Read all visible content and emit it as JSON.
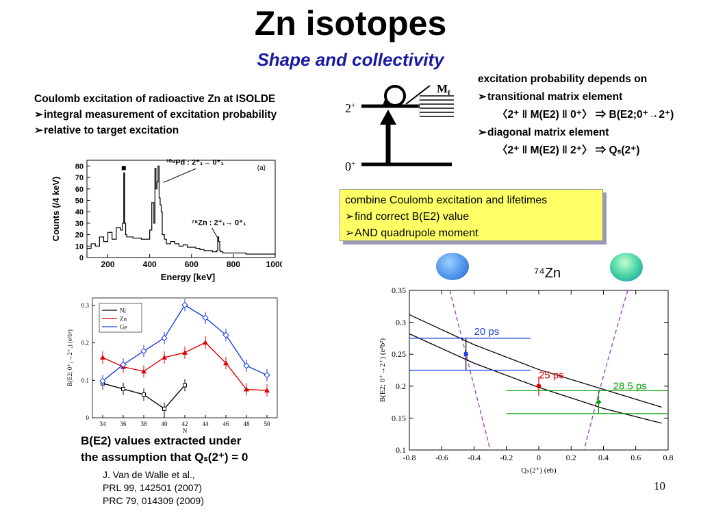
{
  "slide": {
    "title": "Zn isotopes",
    "subtitle": "Shape and collectivity",
    "page_number": "10"
  },
  "left_intro": {
    "line1": "Coulomb excitation of radioactive Zn at ISOLDE",
    "bullet1": "integral measurement of excitation probability",
    "bullet2": "relative to target excitation"
  },
  "level_scheme": {
    "upper_level": "2",
    "upper_parity": "+",
    "lower_level": "0",
    "lower_parity": "+",
    "matrix_label": "M",
    "matrix_sub": "f"
  },
  "right_info": {
    "heading": "excitation probability depends on",
    "bullet1": "transitional matrix element",
    "formula1": "〈2⁺ ‖ M(E2) ‖ 0⁺〉 ⇒ B(E2;0⁺→2⁺)",
    "bullet2": "diagonal matrix element",
    "formula2": "〈2⁺ ‖ M(E2) ‖ 2⁺〉 ⇒ Qₛ(2⁺)"
  },
  "combine_box": {
    "line1": "combine Coulomb excitation and lifetimes",
    "bullet1": "find correct B(E2) value",
    "bullet2": "AND quadrupole moment"
  },
  "bottom_note": {
    "line1": "B(E2) values extracted under",
    "line2": "the assumption that Qₛ(2⁺) = 0"
  },
  "references": {
    "line1": "J. Van de Walle et al.,",
    "line2": "PRL 99, 142501 (2007)",
    "line3": "PRC 79, 014309 (2009)"
  },
  "nucleus_label": "⁷⁴Zn",
  "colors": {
    "subtitle": "#1a1aa0",
    "box_fill": "#ffff66",
    "ni": "#000000",
    "zn": "#e00000",
    "ge": "#1a3ee0",
    "green": "#00a000",
    "purple": "#a040d0"
  },
  "chart_data": [
    {
      "type": "line",
      "panel_label": "(a)",
      "xlabel": "Energy [keV]",
      "ylabel": "Counts (/4 keV)",
      "xlim": [
        100,
        1000
      ],
      "ylim": [
        0,
        85
      ],
      "xticks": [
        "200",
        "400",
        "600",
        "800",
        "1000"
      ],
      "yticks": [
        "0",
        "10",
        "20",
        "30",
        "40",
        "50",
        "60",
        "70",
        "80"
      ],
      "x": [
        100,
        120,
        140,
        160,
        180,
        200,
        220,
        240,
        260,
        270,
        276,
        280,
        285,
        290,
        300,
        320,
        340,
        360,
        380,
        400,
        410,
        420,
        425,
        430,
        435,
        440,
        445,
        450,
        455,
        460,
        470,
        480,
        500,
        520,
        540,
        560,
        580,
        600,
        620,
        640,
        660,
        680,
        700,
        710,
        720,
        725,
        730,
        735,
        740,
        750,
        780,
        820,
        860,
        900,
        940,
        980,
        1000
      ],
      "y": [
        8,
        12,
        10,
        18,
        14,
        22,
        16,
        26,
        24,
        30,
        74,
        30,
        20,
        18,
        18,
        17,
        17,
        16,
        16,
        24,
        48,
        30,
        78,
        60,
        66,
        80,
        52,
        46,
        40,
        20,
        16,
        12,
        14,
        12,
        10,
        11,
        9,
        9,
        8,
        7,
        6,
        6,
        5,
        5,
        6,
        18,
        14,
        6,
        5,
        4,
        4,
        4,
        3,
        3,
        3,
        3,
        2
      ],
      "annotations": [
        "¹⁰⁸Pd : 2⁺₁→ 0⁺₁",
        "⁷⁸Zn : 2⁺₁→ 0⁺₁"
      ],
      "annotation_positions_data": [
        [
          440,
          80
        ],
        [
          730,
          20
        ]
      ]
    },
    {
      "type": "line",
      "xlabel": "N",
      "ylabel": "B(E2; 0⁺₁→2⁺₁)  (e²b²)",
      "xlim": [
        33,
        51
      ],
      "ylim": [
        0,
        0.32
      ],
      "xticks": [
        "34",
        "36",
        "38",
        "40",
        "42",
        "44",
        "46",
        "48",
        "50"
      ],
      "yticks": [
        "0",
        "0.1",
        "0.2",
        "0.3"
      ],
      "legend_position": "top-left",
      "series": [
        {
          "name": "Ni",
          "x": [
            34,
            36,
            38,
            40,
            42
          ],
          "values": [
            0.092,
            0.077,
            0.062,
            0.024,
            0.087
          ]
        },
        {
          "name": "Zn",
          "x": [
            34,
            36,
            38,
            40,
            42,
            44,
            46,
            48,
            50
          ],
          "values": [
            0.161,
            0.136,
            0.124,
            0.161,
            0.174,
            0.201,
            0.146,
            0.076,
            0.073
          ]
        },
        {
          "name": "Ge",
          "x": [
            34,
            36,
            38,
            40,
            42,
            44,
            46,
            48,
            50
          ],
          "values": [
            0.098,
            0.142,
            0.178,
            0.213,
            0.301,
            0.267,
            0.221,
            0.139,
            0.114
          ]
        }
      ]
    },
    {
      "type": "line",
      "xlabel": "Qₛ(2⁺)  (eb)",
      "ylabel": "B(E2; 0⁺→2⁺)  (e²b²)",
      "xlim": [
        -0.8,
        0.8
      ],
      "ylim": [
        0.1,
        0.35
      ],
      "xticks": [
        "-0.8",
        "-0.6",
        "-0.4",
        "-0.2",
        "0",
        "0.2",
        "0.4",
        "0.6",
        "0.8"
      ],
      "yticks": [
        "0.1",
        "0.15",
        "0.2",
        "0.25",
        "0.3",
        "0.35"
      ],
      "series": [
        {
          "name": "upper band",
          "x": [
            -0.8,
            -0.4,
            0,
            0.4,
            0.76
          ],
          "values": [
            0.312,
            0.265,
            0.226,
            0.195,
            0.167
          ]
        },
        {
          "name": "lower band",
          "x": [
            -0.8,
            -0.4,
            0,
            0.4,
            0.76
          ],
          "values": [
            0.282,
            0.236,
            0.198,
            0.165,
            0.142
          ]
        }
      ],
      "lifetime_bands": [
        {
          "label": "20 ps",
          "color": "#1a3ee0",
          "y_values": [
            0.275,
            0.225
          ],
          "x_range": [
            -0.8,
            -0.05
          ],
          "point": [
            -0.45,
            0.25
          ]
        },
        {
          "label": "25 ps",
          "color": "#e00000",
          "point": [
            0,
            0.2
          ],
          "err": [
            0.215,
            0.185
          ]
        },
        {
          "label": "28.5 ps",
          "color": "#00a000",
          "y_values": [
            0.193,
            0.157
          ],
          "x_range": [
            -0.2,
            0.8
          ],
          "point": [
            0.37,
            0.175
          ]
        }
      ]
    }
  ]
}
